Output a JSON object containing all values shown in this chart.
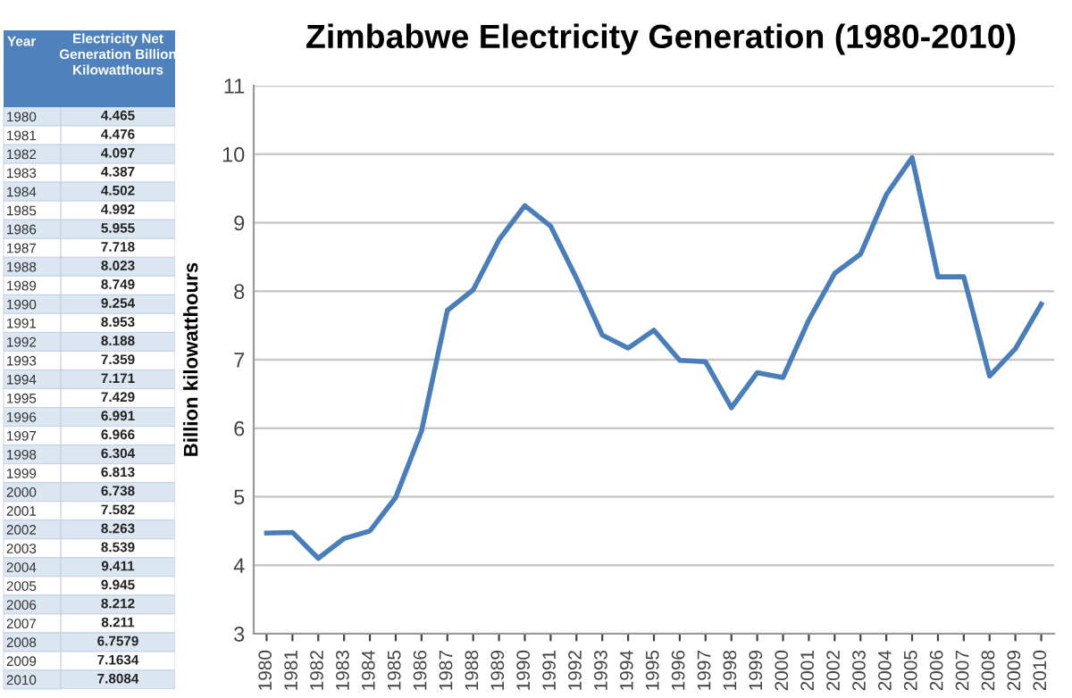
{
  "chart_data": [
    {
      "type": "heatmap",
      "ylabel": "Year",
      "categories": [
        "Electricity Net\nGeneration Billion\nKilowatthours"
      ],
      "data_labels": true,
      "y_categories": [
        "1980",
        "1981",
        "1982",
        "1983",
        "1984",
        "1985",
        "1986",
        "1987",
        "1988",
        "1989",
        "1990",
        "1991",
        "1992",
        "1993",
        "1994",
        "1995",
        "1996",
        "1997",
        "1998",
        "1999",
        "2000",
        "2001",
        "2002",
        "2003",
        "2004",
        "2005",
        "2006",
        "2007",
        "2008",
        "2009",
        "2010"
      ],
      "cells": [
        [
          4.465
        ],
        [
          4.476
        ],
        [
          4.097
        ],
        [
          4.387
        ],
        [
          4.502
        ],
        [
          4.992
        ],
        [
          5.955
        ],
        [
          7.718
        ],
        [
          8.023
        ],
        [
          8.749
        ],
        [
          9.254
        ],
        [
          8.953
        ],
        [
          8.188
        ],
        [
          7.359
        ],
        [
          7.171
        ],
        [
          7.429
        ],
        [
          6.991
        ],
        [
          6.966
        ],
        [
          6.304
        ],
        [
          6.813
        ],
        [
          6.738
        ],
        [
          7.582
        ],
        [
          8.263
        ],
        [
          8.539
        ],
        [
          9.411
        ],
        [
          9.945
        ],
        [
          8.212
        ],
        [
          8.211
        ],
        [
          6.7579
        ],
        [
          7.1634
        ],
        [
          7.8084
        ]
      ]
    },
    {
      "type": "line",
      "title": "Zimbabwe Electricity Generation (1980-2010)",
      "ylabel": "Billion kilowatthours",
      "categories": [
        "1980",
        "1981",
        "1982",
        "1983",
        "1984",
        "1985",
        "1986",
        "1987",
        "1988",
        "1989",
        "1990",
        "1991",
        "1992",
        "1993",
        "1994",
        "1995",
        "1996",
        "1997",
        "1998",
        "1999",
        "2000",
        "2001",
        "2002",
        "2003",
        "2004",
        "2005",
        "2006",
        "2007",
        "2008",
        "2009",
        "2010"
      ],
      "series": [
        {
          "color": "#4a7ebb",
          "values": [
            4.47,
            4.48,
            4.1,
            4.39,
            4.5,
            4.99,
            5.96,
            7.72,
            8.02,
            8.75,
            9.25,
            8.95,
            8.19,
            7.36,
            7.17,
            7.43,
            6.99,
            6.97,
            6.3,
            6.81,
            6.74,
            7.58,
            8.26,
            8.54,
            9.41,
            9.95,
            8.21,
            8.21,
            6.76,
            7.16,
            7.81
          ]
        }
      ],
      "ylim": [
        3,
        11
      ],
      "yticks": [
        3,
        4,
        5,
        6,
        7,
        8,
        9,
        10,
        11
      ],
      "grid": "y",
      "marker": "none",
      "line_style": "solid"
    }
  ]
}
